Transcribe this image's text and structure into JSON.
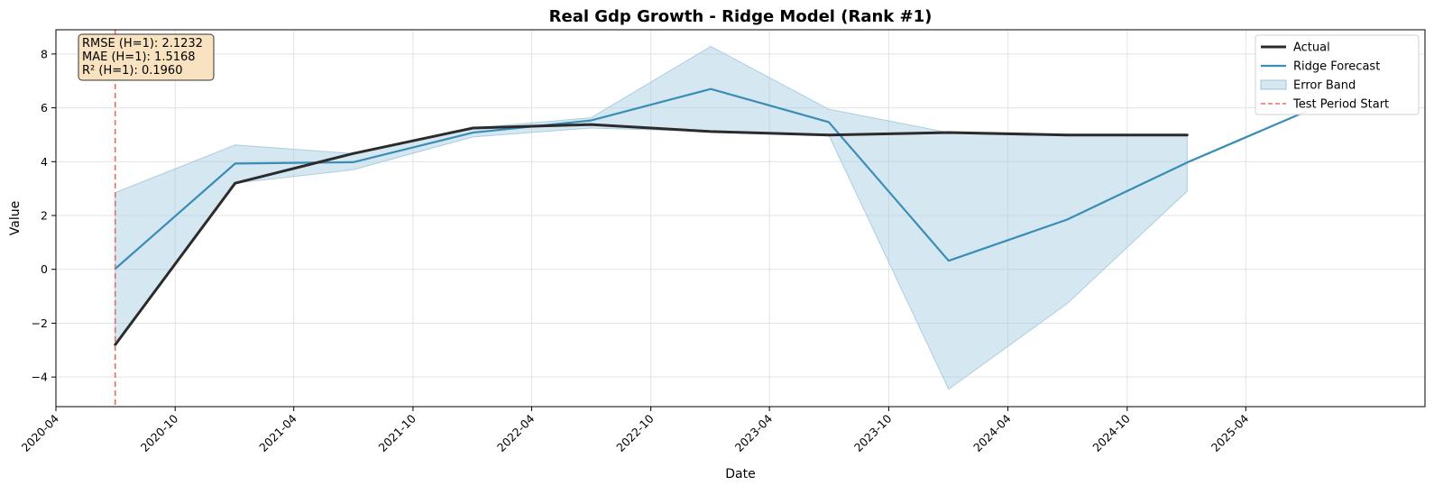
{
  "chart_data": {
    "type": "line",
    "title": "Real Gdp Growth - Ridge Model (Rank #1)",
    "xlabel": "Date",
    "ylabel": "Value",
    "xlim": [
      "2020-04-01",
      "2026-01-01"
    ],
    "ylim": [
      -5.1,
      8.9
    ],
    "x_ticks": [
      "2020-04",
      "2020-10",
      "2021-04",
      "2021-10",
      "2022-04",
      "2022-10",
      "2023-04",
      "2023-10",
      "2024-04",
      "2024-10",
      "2025-04"
    ],
    "y_ticks": [
      -4,
      -2,
      0,
      2,
      4,
      6,
      8
    ],
    "y_tick_labels": [
      "−4",
      "−2",
      "0",
      "2",
      "4",
      "6",
      "8"
    ],
    "grid": true,
    "legend_position": "top-right",
    "series": [
      {
        "name": "Actual",
        "color": "#2b2b2b",
        "x": [
          "2020-07-01",
          "2021-01-01",
          "2021-07-01",
          "2022-01-01",
          "2022-07-01",
          "2023-01-01",
          "2023-07-01",
          "2024-01-01",
          "2024-07-01",
          "2025-01-01"
        ],
        "y": [
          -2.8,
          3.2,
          4.3,
          5.25,
          5.38,
          5.12,
          4.99,
          5.08,
          4.99,
          4.99
        ]
      },
      {
        "name": "Ridge Forecast",
        "color": "#3a8db5",
        "x": [
          "2020-07-01",
          "2021-01-01",
          "2021-07-01",
          "2022-01-01",
          "2022-07-01",
          "2023-01-01",
          "2023-07-01",
          "2024-01-01",
          "2024-07-01",
          "2025-01-01",
          "2025-07-01"
        ],
        "y": [
          0.02,
          3.93,
          3.98,
          5.08,
          5.53,
          6.7,
          5.47,
          0.32,
          1.85,
          3.97,
          5.85
        ]
      }
    ],
    "error_band": {
      "name": "Error Band",
      "color": "#9cc6dc",
      "x": [
        "2020-07-01",
        "2021-01-01",
        "2021-07-01",
        "2022-01-01",
        "2022-07-01",
        "2023-01-01",
        "2023-07-01",
        "2024-01-01",
        "2024-07-01",
        "2025-01-01"
      ],
      "upper": [
        2.85,
        4.62,
        4.3,
        5.25,
        5.63,
        8.28,
        5.95,
        5.08,
        4.99,
        4.99
      ],
      "lower": [
        -2.8,
        3.2,
        3.7,
        4.92,
        5.25,
        5.12,
        4.99,
        -4.45,
        -1.27,
        2.9
      ]
    },
    "vline": {
      "name": "Test Period Start",
      "x": "2020-07-01",
      "color": "#f26b5b"
    },
    "metrics": [
      "RMSE (H=1): 2.1232",
      "MAE (H=1): 1.5168",
      "R² (H=1): 0.1960"
    ],
    "legend": [
      "Actual",
      "Ridge Forecast",
      "Error Band",
      "Test Period Start"
    ]
  }
}
